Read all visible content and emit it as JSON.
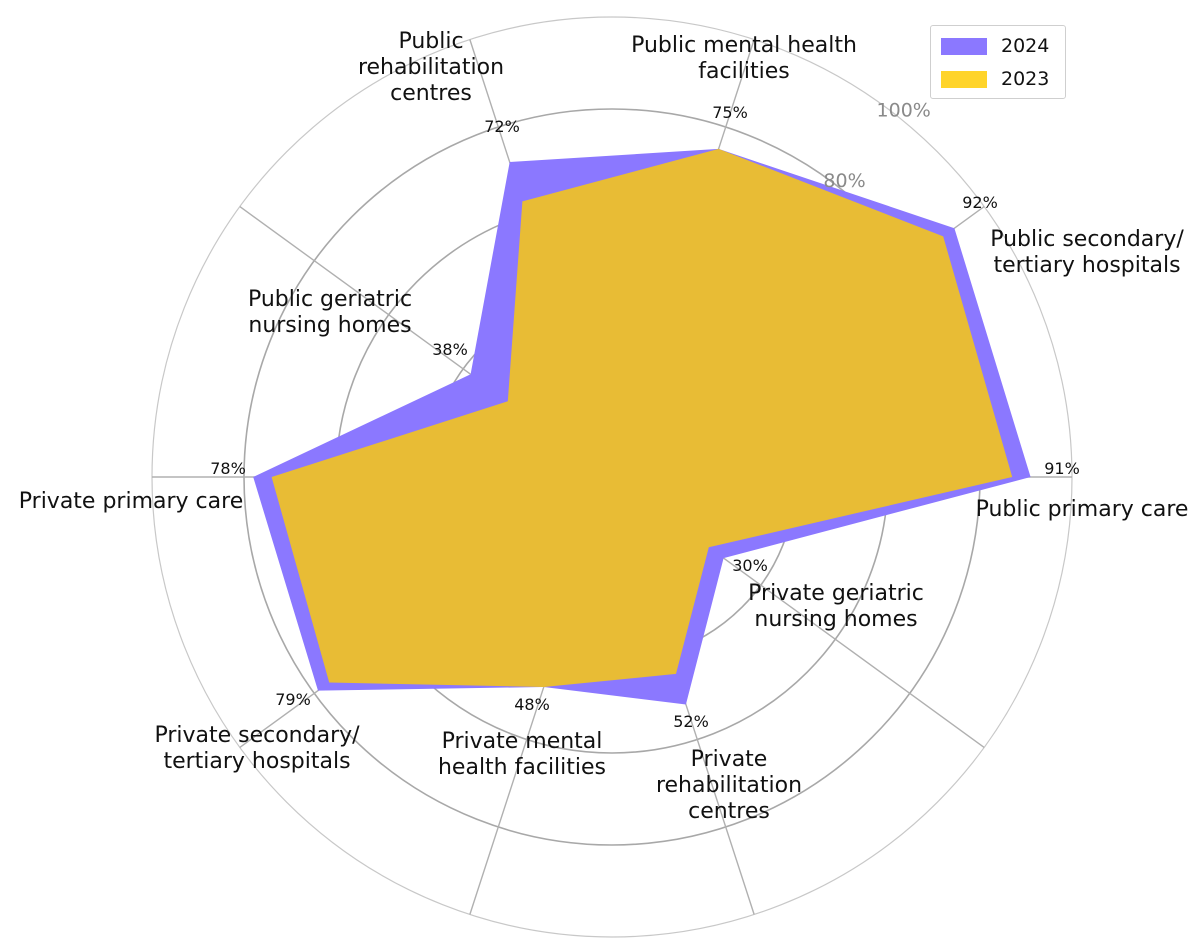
{
  "chart_data": {
    "type": "radar",
    "categories": [
      "Public primary care",
      "Public secondary/ tertiary hospitals",
      "Public mental health facilities",
      "Public rehabilitation centres",
      "Public geriatric nursing homes",
      "Private primary care",
      "Private secondary/ tertiary hospitals",
      "Private mental health facilities",
      "Private rehabilitation centres",
      "Private geriatric nursing homes"
    ],
    "series": [
      {
        "name": "2024",
        "color": "#8b78ff",
        "values": [
          91,
          92,
          75,
          72,
          38,
          78,
          79,
          48,
          52,
          30
        ]
      },
      {
        "name": "2023",
        "color": "#e8bc35",
        "values": [
          87,
          89,
          75,
          63,
          28,
          74,
          76,
          48,
          45,
          26
        ]
      }
    ],
    "value_labels": [
      "91%",
      "92%",
      "75%",
      "72%",
      "38%",
      "78%",
      "79%",
      "48%",
      "52%",
      "30%"
    ],
    "radial_tick_labels": [
      "80%",
      "100%"
    ],
    "rlim": [
      0,
      100
    ],
    "grid": true,
    "legend_position": "top-right"
  }
}
